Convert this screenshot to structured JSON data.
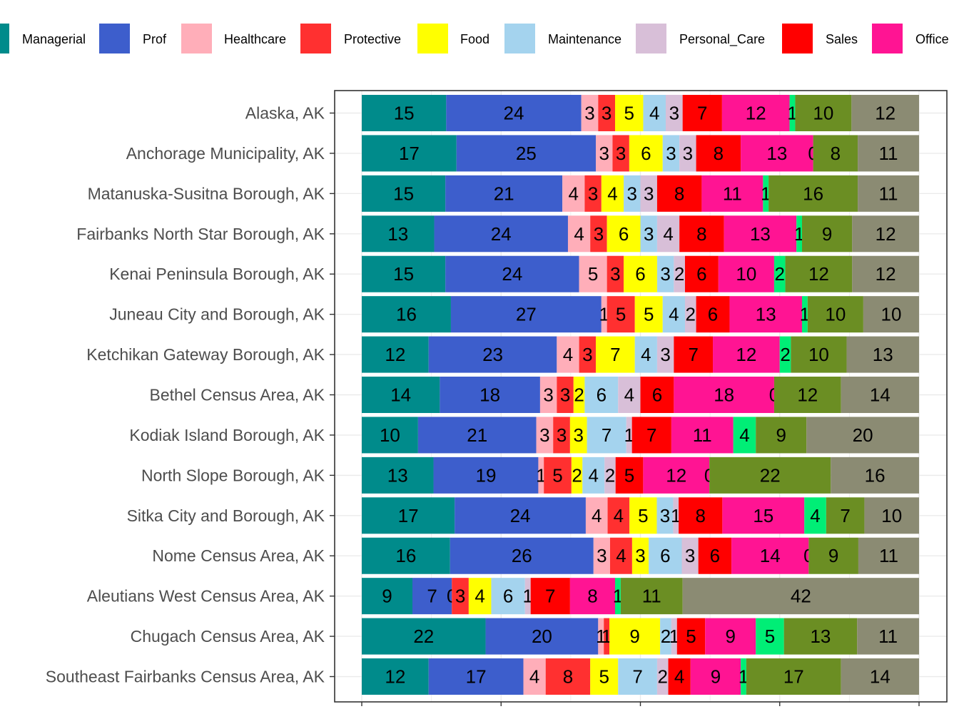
{
  "legend": {
    "items": [
      {
        "label": "Managerial",
        "color": "#008B8B"
      },
      {
        "label": "Prof",
        "color": "#3D5ECC"
      },
      {
        "label": "Healthcare",
        "color": "#FFAEB9"
      },
      {
        "label": "Protective",
        "color": "#FF3030"
      },
      {
        "label": "Food",
        "color": "#FFFF00"
      },
      {
        "label": "Maintenance",
        "color": "#A4D3EE"
      },
      {
        "label": "Personal_Care",
        "color": "#D8BFD8"
      },
      {
        "label": "Sales",
        "color": "#FF0000"
      },
      {
        "label": "Office",
        "color": "#FF1493"
      }
    ]
  },
  "chart_data": {
    "type": "bar",
    "orientation": "horizontal",
    "stacked": true,
    "normalized_to_percent": true,
    "categories": [
      "Alaska, AK",
      "Anchorage Municipality, AK",
      "Matanuska-Susitna Borough, AK",
      "Fairbanks North Star Borough, AK",
      "Kenai Peninsula Borough, AK",
      "Juneau City and Borough, AK",
      "Ketchikan Gateway Borough, AK",
      "Bethel Census Area, AK",
      "Kodiak Island Borough, AK",
      "North Slope Borough, AK",
      "Sitka City and Borough, AK",
      "Nome Census Area, AK",
      "Aleutians West Census Area, AK",
      "Chugach Census Area, AK",
      "Southeast Fairbanks Census Area, AK"
    ],
    "series": [
      {
        "name": "Managerial",
        "color": "#008B8B",
        "values": [
          15,
          17,
          15,
          13,
          15,
          16,
          12,
          14,
          10,
          13,
          17,
          16,
          9,
          22,
          12
        ]
      },
      {
        "name": "Prof",
        "color": "#3D5ECC",
        "values": [
          24,
          25,
          21,
          24,
          24,
          27,
          23,
          18,
          21,
          19,
          24,
          26,
          7,
          20,
          17
        ]
      },
      {
        "name": "Healthcare",
        "color": "#FFAEB9",
        "values": [
          3,
          3,
          4,
          4,
          5,
          1,
          4,
          3,
          3,
          1,
          4,
          3,
          0,
          1,
          4
        ]
      },
      {
        "name": "Protective",
        "color": "#FF3030",
        "values": [
          3,
          3,
          3,
          3,
          3,
          5,
          3,
          3,
          3,
          5,
          4,
          4,
          3,
          1,
          8
        ]
      },
      {
        "name": "Food",
        "color": "#FFFF00",
        "values": [
          5,
          6,
          4,
          6,
          6,
          5,
          7,
          2,
          3,
          2,
          5,
          3,
          4,
          9,
          5
        ]
      },
      {
        "name": "Maintenance",
        "color": "#A4D3EE",
        "values": [
          4,
          3,
          3,
          3,
          3,
          4,
          4,
          6,
          7,
          4,
          3,
          6,
          6,
          2,
          7
        ]
      },
      {
        "name": "Personal_Care",
        "color": "#D8BFD8",
        "values": [
          3,
          3,
          3,
          4,
          2,
          2,
          3,
          4,
          1,
          2,
          1,
          3,
          1,
          1,
          2
        ]
      },
      {
        "name": "Sales",
        "color": "#FF0000",
        "values": [
          7,
          8,
          8,
          8,
          6,
          6,
          7,
          6,
          7,
          5,
          8,
          6,
          7,
          5,
          4
        ]
      },
      {
        "name": "Office",
        "color": "#FF1493",
        "values": [
          12,
          13,
          11,
          13,
          10,
          13,
          12,
          18,
          11,
          12,
          15,
          14,
          8,
          9,
          9
        ]
      },
      {
        "name": "",
        "color": "#00EE76",
        "values": [
          1,
          0,
          1,
          1,
          2,
          1,
          2,
          0,
          4,
          0,
          4,
          0,
          1,
          5,
          1
        ]
      },
      {
        "name": "",
        "color": "#6B8E23",
        "values": [
          10,
          8,
          16,
          9,
          12,
          10,
          10,
          12,
          9,
          22,
          7,
          9,
          11,
          13,
          17
        ]
      },
      {
        "name": "",
        "color": "#8B8B73",
        "values": [
          12,
          11,
          11,
          12,
          12,
          10,
          13,
          14,
          20,
          16,
          10,
          11,
          42,
          11,
          14
        ]
      }
    ],
    "x_range": [
      0,
      100
    ],
    "grid": true,
    "legend_position": "top",
    "title": "",
    "xlabel": "",
    "ylabel": ""
  }
}
